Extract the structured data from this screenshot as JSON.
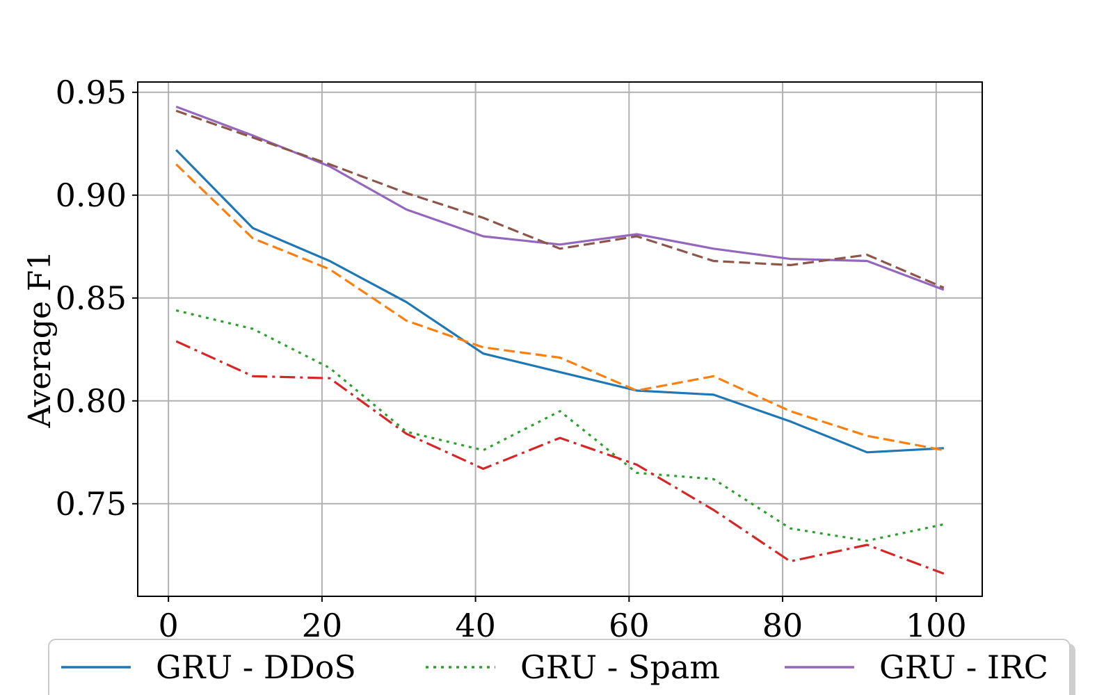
{
  "chart_data": {
    "type": "line",
    "title": "",
    "xlabel": "",
    "ylabel": "Average F1",
    "xlim": [
      -4,
      106
    ],
    "ylim": [
      0.705,
      0.955
    ],
    "xticks": [
      0,
      20,
      40,
      60,
      80,
      100
    ],
    "xtick_labels": [
      "0",
      "20",
      "40",
      "60",
      "80",
      "100"
    ],
    "yticks": [
      0.75,
      0.8,
      0.85,
      0.9,
      0.95
    ],
    "ytick_labels": [
      "0.75",
      "0.80",
      "0.85",
      "0.90",
      "0.95"
    ],
    "grid": true,
    "legend_position": "bottom",
    "x": [
      1,
      11,
      21,
      31,
      41,
      51,
      61,
      71,
      81,
      91,
      101
    ],
    "series": [
      {
        "name": "GRU - DDoS",
        "color": "#1f77b4",
        "style": "solid",
        "values": [
          0.922,
          0.884,
          0.868,
          0.848,
          0.823,
          0.814,
          0.805,
          0.803,
          0.79,
          0.775,
          0.777
        ]
      },
      {
        "name": "",
        "color": "#ff7f0e",
        "style": "dashed",
        "values": [
          0.915,
          0.879,
          0.864,
          0.839,
          0.826,
          0.821,
          0.805,
          0.812,
          0.795,
          0.783,
          0.776
        ]
      },
      {
        "name": "GRU - Spam",
        "color": "#2ca02c",
        "style": "dotted",
        "values": [
          0.844,
          0.835,
          0.816,
          0.785,
          0.776,
          0.795,
          0.765,
          0.762,
          0.738,
          0.732,
          0.74
        ]
      },
      {
        "name": "",
        "color": "#d62728",
        "style": "dashdot",
        "values": [
          0.829,
          0.812,
          0.811,
          0.784,
          0.767,
          0.782,
          0.769,
          0.747,
          0.722,
          0.73,
          0.716
        ]
      },
      {
        "name": "GRU - IRC",
        "color": "#9467bd",
        "style": "solid",
        "values": [
          0.943,
          0.929,
          0.914,
          0.893,
          0.88,
          0.876,
          0.881,
          0.874,
          0.869,
          0.868,
          0.854
        ]
      },
      {
        "name": "",
        "color": "#8c564b",
        "style": "dashed",
        "values": [
          0.941,
          0.928,
          0.915,
          0.901,
          0.889,
          0.874,
          0.88,
          0.868,
          0.866,
          0.871,
          0.855
        ]
      }
    ]
  }
}
